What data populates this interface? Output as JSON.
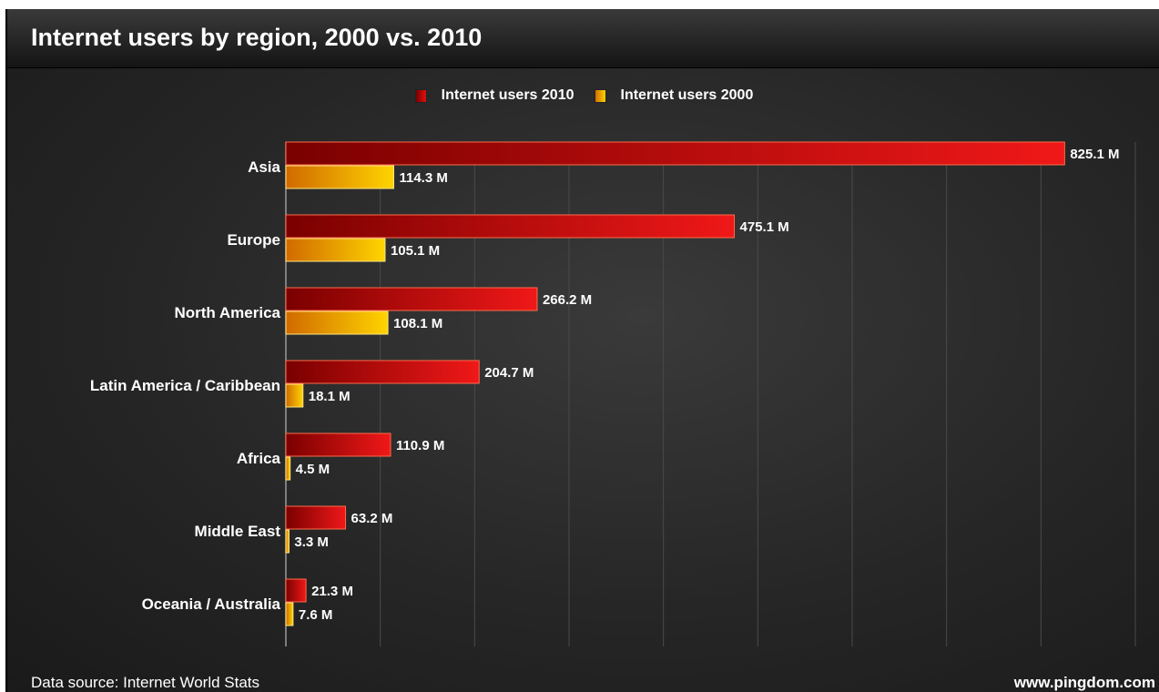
{
  "chart_data": {
    "type": "bar",
    "orientation": "horizontal",
    "title": "Internet users by region, 2000 vs. 2010",
    "categories": [
      "Asia",
      "Europe",
      "North America",
      "Latin America / Caribbean",
      "Africa",
      "Middle East",
      "Oceania / Australia"
    ],
    "series": [
      {
        "name": "Internet users 2010",
        "values": [
          825.1,
          475.1,
          266.2,
          204.7,
          110.9,
          63.2,
          21.3
        ],
        "labels": [
          "825.1 M",
          "475.1 M",
          "266.2 M",
          "204.7 M",
          "110.9 M",
          "63.2 M",
          "21.3 M"
        ],
        "color": "#e01010"
      },
      {
        "name": "Internet users 2000",
        "values": [
          114.3,
          105.1,
          108.1,
          18.1,
          4.5,
          3.3,
          7.6
        ],
        "labels": [
          "114.3 M",
          "105.1 M",
          "108.1 M",
          "18.1 M",
          "4.5 M",
          "3.3 M",
          "7.6 M"
        ],
        "color": "#f5b800"
      }
    ],
    "xlim": [
      0,
      900
    ],
    "unit": "M",
    "grid": true,
    "legend": "top-center"
  },
  "footer": {
    "source": "Data source: Internet World Stats",
    "site": "www.pingdom.com"
  }
}
